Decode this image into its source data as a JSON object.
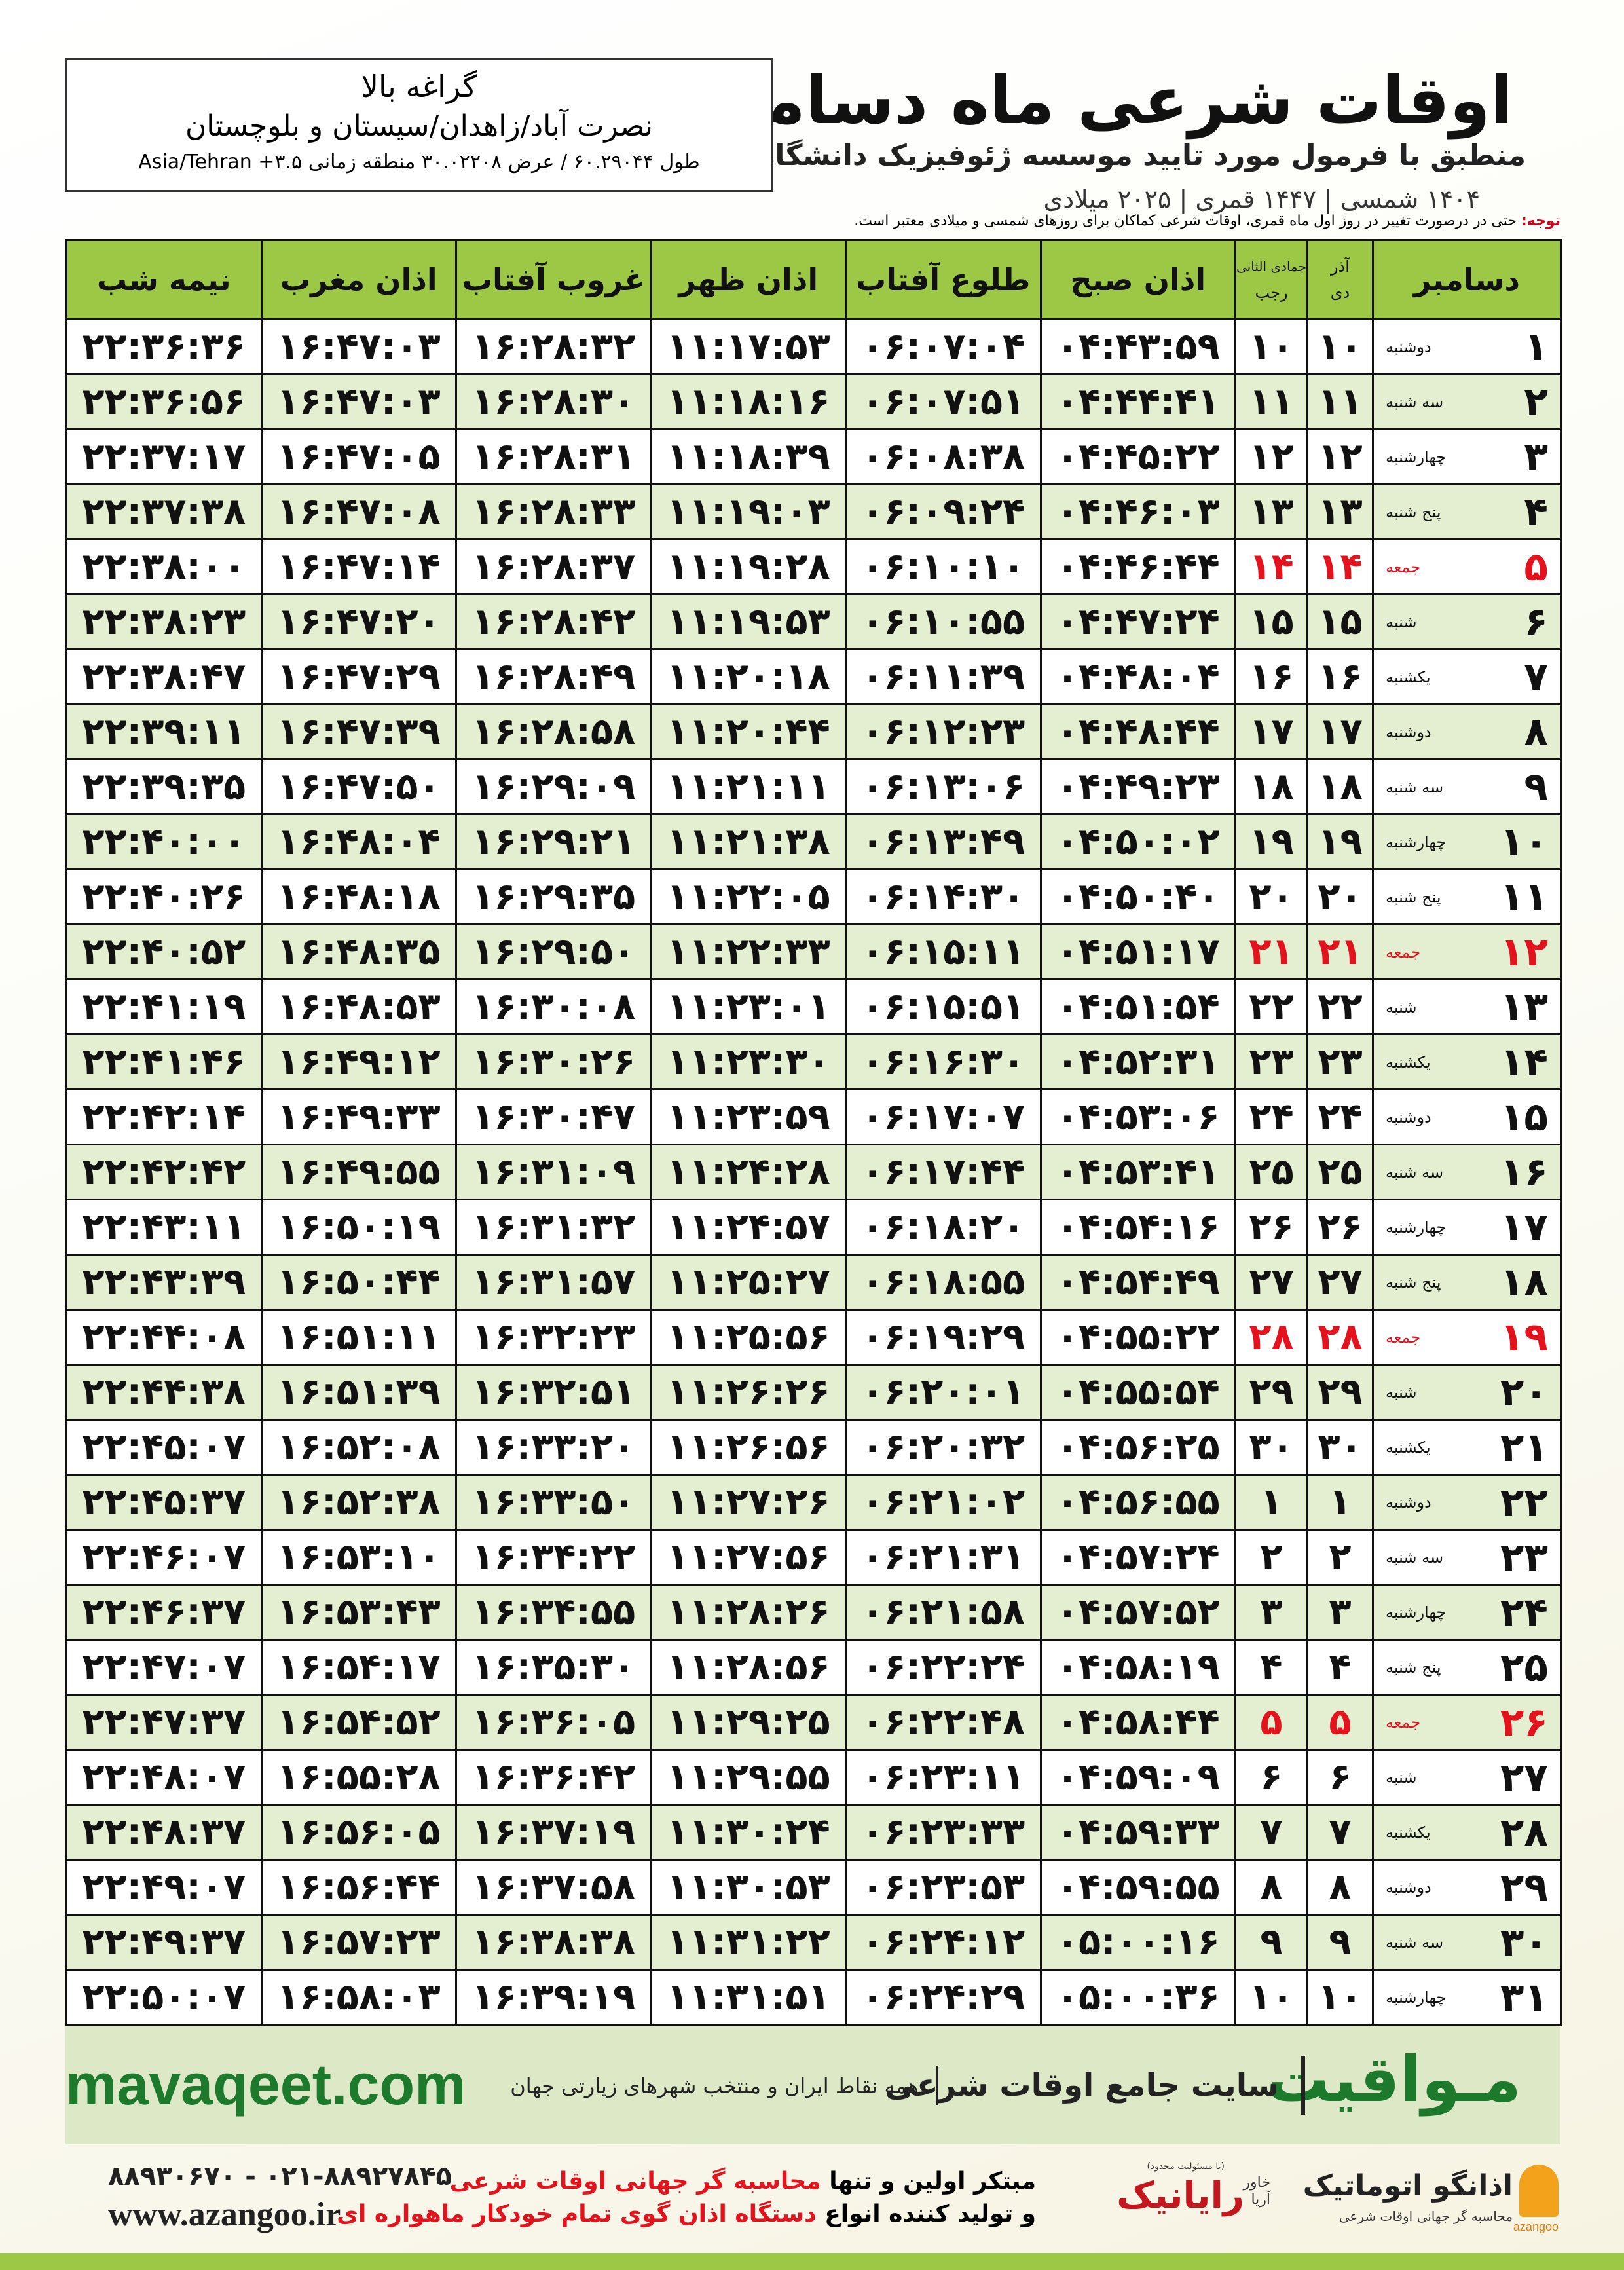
{
  "header": {
    "title": "اوقات شرعی ماه دسامبر",
    "subtitle": "منطبق با فرمول مورد تایید موسسه ژئوفیزیک دانشگاه تهران",
    "date_line": "۱۴۰۴ شمسی | ۱۴۴۷ قمری | ۲۰۲۵ میلادی"
  },
  "location": {
    "name": "گراغه بالا",
    "region": "نصرت آباد/زاهدان/سیستان و بلوچستان",
    "coords": "طول ۶۰.۲۹۰۴۴ / عرض ۳۰.۰۲۲۰۸ منطقه زمانی ۳.۵+ Asia/Tehran"
  },
  "note": {
    "label": "توجه:",
    "text": "حتی در درصورت تغییر در روز اول ماه قمری، اوقات شرعی کماکان برای روزهای شمسی و میلادی معتبر است."
  },
  "table": {
    "headers": {
      "month": "دسامبر",
      "shamsi_top": "آذر",
      "shamsi_bottom": "دی",
      "qamari_top": "جمادی الثانی",
      "qamari_bottom": "رجب",
      "times": [
        "اذان صبح",
        "طلوع آفتاب",
        "اذان ظهر",
        "غروب آفتاب",
        "اذان مغرب",
        "نیمه شب"
      ]
    },
    "rows": [
      {
        "day": "۱",
        "weekday": "دوشنبه",
        "shamsi": "۱۰",
        "qamari": "۱۰",
        "times": [
          "۰۴:۴۳:۵۹",
          "۰۶:۰۷:۰۴",
          "۱۱:۱۷:۵۳",
          "۱۶:۲۸:۳۲",
          "۱۶:۴۷:۰۳",
          "۲۲:۳۶:۳۶"
        ]
      },
      {
        "day": "۲",
        "weekday": "سه شنبه",
        "shamsi": "۱۱",
        "qamari": "۱۱",
        "times": [
          "۰۴:۴۴:۴۱",
          "۰۶:۰۷:۵۱",
          "۱۱:۱۸:۱۶",
          "۱۶:۲۸:۳۰",
          "۱۶:۴۷:۰۳",
          "۲۲:۳۶:۵۶"
        ]
      },
      {
        "day": "۳",
        "weekday": "چهارشنبه",
        "shamsi": "۱۲",
        "qamari": "۱۲",
        "times": [
          "۰۴:۴۵:۲۲",
          "۰۶:۰۸:۳۸",
          "۱۱:۱۸:۳۹",
          "۱۶:۲۸:۳۱",
          "۱۶:۴۷:۰۵",
          "۲۲:۳۷:۱۷"
        ]
      },
      {
        "day": "۴",
        "weekday": "پنج شنبه",
        "shamsi": "۱۳",
        "qamari": "۱۳",
        "times": [
          "۰۴:۴۶:۰۳",
          "۰۶:۰۹:۲۴",
          "۱۱:۱۹:۰۳",
          "۱۶:۲۸:۳۳",
          "۱۶:۴۷:۰۸",
          "۲۲:۳۷:۳۸"
        ]
      },
      {
        "day": "۵",
        "weekday": "جمعه",
        "shamsi": "۱۴",
        "qamari": "۱۴",
        "holiday": true,
        "times": [
          "۰۴:۴۶:۴۴",
          "۰۶:۱۰:۱۰",
          "۱۱:۱۹:۲۸",
          "۱۶:۲۸:۳۷",
          "۱۶:۴۷:۱۴",
          "۲۲:۳۸:۰۰"
        ]
      },
      {
        "day": "۶",
        "weekday": "شنبه",
        "shamsi": "۱۵",
        "qamari": "۱۵",
        "times": [
          "۰۴:۴۷:۲۴",
          "۰۶:۱۰:۵۵",
          "۱۱:۱۹:۵۳",
          "۱۶:۲۸:۴۲",
          "۱۶:۴۷:۲۰",
          "۲۲:۳۸:۲۳"
        ]
      },
      {
        "day": "۷",
        "weekday": "یکشنبه",
        "shamsi": "۱۶",
        "qamari": "۱۶",
        "times": [
          "۰۴:۴۸:۰۴",
          "۰۶:۱۱:۳۹",
          "۱۱:۲۰:۱۸",
          "۱۶:۲۸:۴۹",
          "۱۶:۴۷:۲۹",
          "۲۲:۳۸:۴۷"
        ]
      },
      {
        "day": "۸",
        "weekday": "دوشنبه",
        "shamsi": "۱۷",
        "qamari": "۱۷",
        "times": [
          "۰۴:۴۸:۴۴",
          "۰۶:۱۲:۲۳",
          "۱۱:۲۰:۴۴",
          "۱۶:۲۸:۵۸",
          "۱۶:۴۷:۳۹",
          "۲۲:۳۹:۱۱"
        ]
      },
      {
        "day": "۹",
        "weekday": "سه شنبه",
        "shamsi": "۱۸",
        "qamari": "۱۸",
        "times": [
          "۰۴:۴۹:۲۳",
          "۰۶:۱۳:۰۶",
          "۱۱:۲۱:۱۱",
          "۱۶:۲۹:۰۹",
          "۱۶:۴۷:۵۰",
          "۲۲:۳۹:۳۵"
        ]
      },
      {
        "day": "۱۰",
        "weekday": "چهارشنبه",
        "shamsi": "۱۹",
        "qamari": "۱۹",
        "times": [
          "۰۴:۵۰:۰۲",
          "۰۶:۱۳:۴۹",
          "۱۱:۲۱:۳۸",
          "۱۶:۲۹:۲۱",
          "۱۶:۴۸:۰۴",
          "۲۲:۴۰:۰۰"
        ]
      },
      {
        "day": "۱۱",
        "weekday": "پنج شنبه",
        "shamsi": "۲۰",
        "qamari": "۲۰",
        "times": [
          "۰۴:۵۰:۴۰",
          "۰۶:۱۴:۳۰",
          "۱۱:۲۲:۰۵",
          "۱۶:۲۹:۳۵",
          "۱۶:۴۸:۱۸",
          "۲۲:۴۰:۲۶"
        ]
      },
      {
        "day": "۱۲",
        "weekday": "جمعه",
        "shamsi": "۲۱",
        "qamari": "۲۱",
        "holiday": true,
        "times": [
          "۰۴:۵۱:۱۷",
          "۰۶:۱۵:۱۱",
          "۱۱:۲۲:۳۳",
          "۱۶:۲۹:۵۰",
          "۱۶:۴۸:۳۵",
          "۲۲:۴۰:۵۲"
        ]
      },
      {
        "day": "۱۳",
        "weekday": "شنبه",
        "shamsi": "۲۲",
        "qamari": "۲۲",
        "times": [
          "۰۴:۵۱:۵۴",
          "۰۶:۱۵:۵۱",
          "۱۱:۲۳:۰۱",
          "۱۶:۳۰:۰۸",
          "۱۶:۴۸:۵۳",
          "۲۲:۴۱:۱۹"
        ]
      },
      {
        "day": "۱۴",
        "weekday": "یکشنبه",
        "shamsi": "۲۳",
        "qamari": "۲۳",
        "times": [
          "۰۴:۵۲:۳۱",
          "۰۶:۱۶:۳۰",
          "۱۱:۲۳:۳۰",
          "۱۶:۳۰:۲۶",
          "۱۶:۴۹:۱۲",
          "۲۲:۴۱:۴۶"
        ]
      },
      {
        "day": "۱۵",
        "weekday": "دوشنبه",
        "shamsi": "۲۴",
        "qamari": "۲۴",
        "times": [
          "۰۴:۵۳:۰۶",
          "۰۶:۱۷:۰۷",
          "۱۱:۲۳:۵۹",
          "۱۶:۳۰:۴۷",
          "۱۶:۴۹:۳۳",
          "۲۲:۴۲:۱۴"
        ]
      },
      {
        "day": "۱۶",
        "weekday": "سه شنبه",
        "shamsi": "۲۵",
        "qamari": "۲۵",
        "times": [
          "۰۴:۵۳:۴۱",
          "۰۶:۱۷:۴۴",
          "۱۱:۲۴:۲۸",
          "۱۶:۳۱:۰۹",
          "۱۶:۴۹:۵۵",
          "۲۲:۴۲:۴۲"
        ]
      },
      {
        "day": "۱۷",
        "weekday": "چهارشنبه",
        "shamsi": "۲۶",
        "qamari": "۲۶",
        "times": [
          "۰۴:۵۴:۱۶",
          "۰۶:۱۸:۲۰",
          "۱۱:۲۴:۵۷",
          "۱۶:۳۱:۳۲",
          "۱۶:۵۰:۱۹",
          "۲۲:۴۳:۱۱"
        ]
      },
      {
        "day": "۱۸",
        "weekday": "پنج شنبه",
        "shamsi": "۲۷",
        "qamari": "۲۷",
        "times": [
          "۰۴:۵۴:۴۹",
          "۰۶:۱۸:۵۵",
          "۱۱:۲۵:۲۷",
          "۱۶:۳۱:۵۷",
          "۱۶:۵۰:۴۴",
          "۲۲:۴۳:۳۹"
        ]
      },
      {
        "day": "۱۹",
        "weekday": "جمعه",
        "shamsi": "۲۸",
        "qamari": "۲۸",
        "holiday": true,
        "times": [
          "۰۴:۵۵:۲۲",
          "۰۶:۱۹:۲۹",
          "۱۱:۲۵:۵۶",
          "۱۶:۳۲:۲۳",
          "۱۶:۵۱:۱۱",
          "۲۲:۴۴:۰۸"
        ]
      },
      {
        "day": "۲۰",
        "weekday": "شنبه",
        "shamsi": "۲۹",
        "qamari": "۲۹",
        "times": [
          "۰۴:۵۵:۵۴",
          "۰۶:۲۰:۰۱",
          "۱۱:۲۶:۲۶",
          "۱۶:۳۲:۵۱",
          "۱۶:۵۱:۳۹",
          "۲۲:۴۴:۳۸"
        ]
      },
      {
        "day": "۲۱",
        "weekday": "یکشنبه",
        "shamsi": "۳۰",
        "qamari": "۳۰",
        "times": [
          "۰۴:۵۶:۲۵",
          "۰۶:۲۰:۳۲",
          "۱۱:۲۶:۵۶",
          "۱۶:۳۳:۲۰",
          "۱۶:۵۲:۰۸",
          "۲۲:۴۵:۰۷"
        ]
      },
      {
        "day": "۲۲",
        "weekday": "دوشنبه",
        "shamsi": "۱",
        "qamari": "۱",
        "times": [
          "۰۴:۵۶:۵۵",
          "۰۶:۲۱:۰۲",
          "۱۱:۲۷:۲۶",
          "۱۶:۳۳:۵۰",
          "۱۶:۵۲:۳۸",
          "۲۲:۴۵:۳۷"
        ]
      },
      {
        "day": "۲۳",
        "weekday": "سه شنبه",
        "shamsi": "۲",
        "qamari": "۲",
        "times": [
          "۰۴:۵۷:۲۴",
          "۰۶:۲۱:۳۱",
          "۱۱:۲۷:۵۶",
          "۱۶:۳۴:۲۲",
          "۱۶:۵۳:۱۰",
          "۲۲:۴۶:۰۷"
        ]
      },
      {
        "day": "۲۴",
        "weekday": "چهارشنبه",
        "shamsi": "۳",
        "qamari": "۳",
        "times": [
          "۰۴:۵۷:۵۲",
          "۰۶:۲۱:۵۸",
          "۱۱:۲۸:۲۶",
          "۱۶:۳۴:۵۵",
          "۱۶:۵۳:۴۳",
          "۲۲:۴۶:۳۷"
        ]
      },
      {
        "day": "۲۵",
        "weekday": "پنج شنبه",
        "shamsi": "۴",
        "qamari": "۴",
        "times": [
          "۰۴:۵۸:۱۹",
          "۰۶:۲۲:۲۴",
          "۱۱:۲۸:۵۶",
          "۱۶:۳۵:۳۰",
          "۱۶:۵۴:۱۷",
          "۲۲:۴۷:۰۷"
        ]
      },
      {
        "day": "۲۶",
        "weekday": "جمعه",
        "shamsi": "۵",
        "qamari": "۵",
        "holiday": true,
        "times": [
          "۰۴:۵۸:۴۴",
          "۰۶:۲۲:۴۸",
          "۱۱:۲۹:۲۵",
          "۱۶:۳۶:۰۵",
          "۱۶:۵۴:۵۲",
          "۲۲:۴۷:۳۷"
        ]
      },
      {
        "day": "۲۷",
        "weekday": "شنبه",
        "shamsi": "۶",
        "qamari": "۶",
        "times": [
          "۰۴:۵۹:۰۹",
          "۰۶:۲۳:۱۱",
          "۱۱:۲۹:۵۵",
          "۱۶:۳۶:۴۲",
          "۱۶:۵۵:۲۸",
          "۲۲:۴۸:۰۷"
        ]
      },
      {
        "day": "۲۸",
        "weekday": "یکشنبه",
        "shamsi": "۷",
        "qamari": "۷",
        "times": [
          "۰۴:۵۹:۳۳",
          "۰۶:۲۳:۳۳",
          "۱۱:۳۰:۲۴",
          "۱۶:۳۷:۱۹",
          "۱۶:۵۶:۰۵",
          "۲۲:۴۸:۳۷"
        ]
      },
      {
        "day": "۲۹",
        "weekday": "دوشنبه",
        "shamsi": "۸",
        "qamari": "۸",
        "times": [
          "۰۴:۵۹:۵۵",
          "۰۶:۲۳:۵۳",
          "۱۱:۳۰:۵۳",
          "۱۶:۳۷:۵۸",
          "۱۶:۵۶:۴۴",
          "۲۲:۴۹:۰۷"
        ]
      },
      {
        "day": "۳۰",
        "weekday": "سه شنبه",
        "shamsi": "۹",
        "qamari": "۹",
        "times": [
          "۰۵:۰۰:۱۶",
          "۰۶:۲۴:۱۲",
          "۱۱:۳۱:۲۲",
          "۱۶:۳۸:۳۸",
          "۱۶:۵۷:۲۳",
          "۲۲:۴۹:۳۷"
        ]
      },
      {
        "day": "۳۱",
        "weekday": "چهارشنبه",
        "shamsi": "۱۰",
        "qamari": "۱۰",
        "times": [
          "۰۵:۰۰:۳۶",
          "۰۶:۲۴:۲۹",
          "۱۱:۳۱:۵۱",
          "۱۶:۳۹:۱۹",
          "۱۶:۵۸:۰۳",
          "۲۲:۵۰:۰۷"
        ]
      }
    ]
  },
  "banner": {
    "brand": "مـواقیت",
    "tagline": "سایت جامع اوقات شرعی",
    "coverage": "همه نقاط ایران و منتخب شهرهای زیارتی جهان",
    "url": "mavaqeet.com"
  },
  "footer": {
    "phone": "۰۲۱-۸۸۹۲۷۸۴۵ - ۸۸۹۳۰۶۷۰",
    "website": "www.azangoo.ir",
    "line1_a": "مبتکر اولین و تنها",
    "line1_b": "محاسبه گر جهانی اوقات شرعی",
    "line2_a": "و تولید کننده انواع",
    "line2_b": "دستگاه اذان گوی تمام خودکار ماهواره ای",
    "partner": "رایانیک",
    "partner_sub": "خاور آریا",
    "partner_note": "(با مسئولیت محدود)",
    "logo": "اذانگو اتوماتیک",
    "logo_sub": "محاسبه گر جهانی اوقات شرعی",
    "logo_en": "azangoo"
  }
}
